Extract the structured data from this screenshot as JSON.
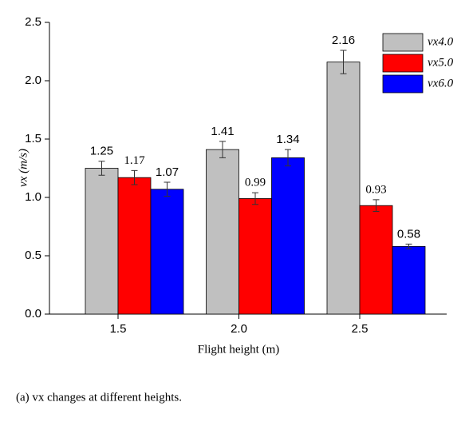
{
  "chart_data": {
    "type": "bar",
    "x_label": "Flight height (m)",
    "y_label": "vx (m/s)",
    "caption": "(a) vx changes at different heights.",
    "categories": [
      "1.5",
      "2.0",
      "2.5"
    ],
    "series": [
      {
        "name": "vx4.0",
        "color": "#c0c0c0",
        "values": [
          1.25,
          1.41,
          2.16
        ],
        "errors": [
          0.06,
          0.07,
          0.1
        ]
      },
      {
        "name": "vx5.0",
        "color": "#ff0000",
        "values": [
          1.17,
          0.99,
          0.93
        ],
        "errors": [
          0.06,
          0.05,
          0.05
        ]
      },
      {
        "name": "vx6.0",
        "color": "#0000ff",
        "values": [
          1.07,
          1.34,
          0.58
        ],
        "errors": [
          0.06,
          0.07,
          0.02
        ]
      }
    ],
    "ylim": [
      0,
      2.5
    ],
    "yticks": [
      {
        "value": 0,
        "label": "0.0"
      },
      {
        "value": 0.5,
        "label": "0.5"
      },
      {
        "value": 1,
        "label": "1.0"
      },
      {
        "value": 1.5,
        "label": "1.5"
      },
      {
        "value": 2,
        "label": "2.0"
      },
      {
        "value": 2.5,
        "label": "2.5"
      }
    ],
    "legend": "top-right"
  }
}
